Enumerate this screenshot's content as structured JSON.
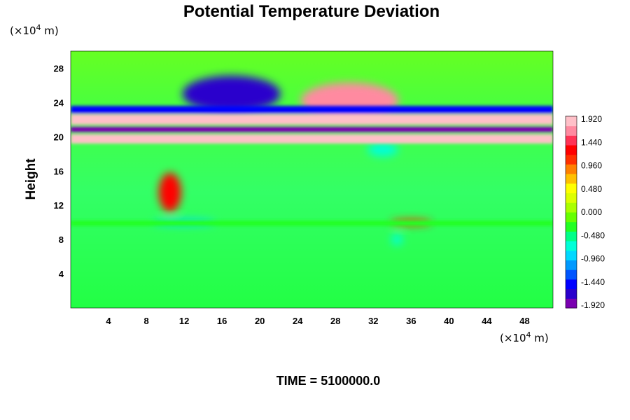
{
  "chart_data": {
    "type": "heatmap",
    "title": "Potential Temperature Deviation",
    "xlabel": "",
    "ylabel": "Height",
    "x_unit_prefix": "(×10",
    "unit_exponent": "4",
    "unit_suffix": " m)",
    "xlim": [
      0,
      51
    ],
    "ylim": [
      0,
      30
    ],
    "x_ticks": [
      4,
      8,
      12,
      16,
      20,
      24,
      28,
      32,
      36,
      40,
      44,
      48
    ],
    "y_ticks": [
      4,
      8,
      12,
      16,
      20,
      24,
      28
    ],
    "x_tick_labels": [
      "4",
      "8",
      "12",
      "16",
      "20",
      "24",
      "28",
      "32",
      "36",
      "40",
      "44",
      "48"
    ],
    "y_tick_labels": [
      "4",
      "8",
      "12",
      "16",
      "20",
      "24",
      "28"
    ],
    "colorbar": {
      "min": -1.92,
      "max": 1.92,
      "tick_labels": [
        "1.920",
        "1.440",
        "0.960",
        "0.480",
        "0.000",
        "-0.480",
        "-0.960",
        "-1.440",
        "-1.920"
      ],
      "colors": [
        "#7a00b0",
        "#2a00cc",
        "#0000ff",
        "#0055ff",
        "#0099ff",
        "#00d8ff",
        "#00ffd8",
        "#00ff88",
        "#22ff22",
        "#66ff00",
        "#aaff00",
        "#ddff00",
        "#ffff00",
        "#ffc000",
        "#ff8000",
        "#ff3000",
        "#ff0000",
        "#ff3355",
        "#ff8aa0",
        "#ffc0c8"
      ]
    },
    "features": [
      {
        "x": 17,
        "y": 25,
        "value": -1.7
      },
      {
        "x": 29.5,
        "y": 24.2,
        "value": 1.8
      },
      {
        "x": 10.5,
        "y": 13.5,
        "value": 1.3
      },
      {
        "x": 12,
        "y": 10,
        "value": -1.0
      },
      {
        "x": 36,
        "y": 10,
        "value": 1.2
      },
      {
        "x": 34.5,
        "y": 8,
        "value": -0.8
      },
      {
        "x": 33,
        "y": 18.5,
        "value": -0.8
      }
    ],
    "bands": [
      {
        "y0": 21.4,
        "y1": 22.6,
        "value": 1.92
      },
      {
        "y0": 20.5,
        "y1": 21.2,
        "value": -1.92
      },
      {
        "y0": 19.2,
        "y1": 20.3,
        "value": 1.92
      },
      {
        "y0": 22.7,
        "y1": 23.6,
        "value": -1.6
      },
      {
        "y0": 9.6,
        "y1": 10.2,
        "value": -0.4
      }
    ]
  },
  "footer": {
    "time_label": "TIME = 5100000.0"
  }
}
